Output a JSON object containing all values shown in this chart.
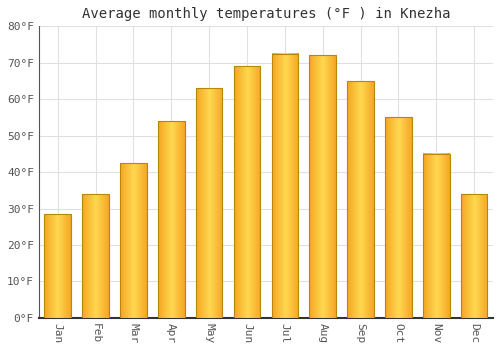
{
  "title": "Average monthly temperatures (°F ) in Knezha",
  "months": [
    "Jan",
    "Feb",
    "Mar",
    "Apr",
    "May",
    "Jun",
    "Jul",
    "Aug",
    "Sep",
    "Oct",
    "Nov",
    "Dec"
  ],
  "values": [
    28.5,
    34,
    42.5,
    54,
    63,
    69,
    72.5,
    72,
    65,
    55,
    45,
    34
  ],
  "bar_color_main": "#F5A623",
  "bar_color_light": "#FFD060",
  "bar_edge_color": "#B8860B",
  "ylim": [
    0,
    80
  ],
  "yticks": [
    0,
    10,
    20,
    30,
    40,
    50,
    60,
    70,
    80
  ],
  "ytick_labels": [
    "0°F",
    "10°F",
    "20°F",
    "30°F",
    "40°F",
    "50°F",
    "60°F",
    "70°F",
    "80°F"
  ],
  "background_color": "#FFFFFF",
  "grid_color": "#E0E0E0",
  "title_fontsize": 10,
  "tick_fontsize": 8,
  "font_family": "monospace",
  "axis_color": "#555555"
}
